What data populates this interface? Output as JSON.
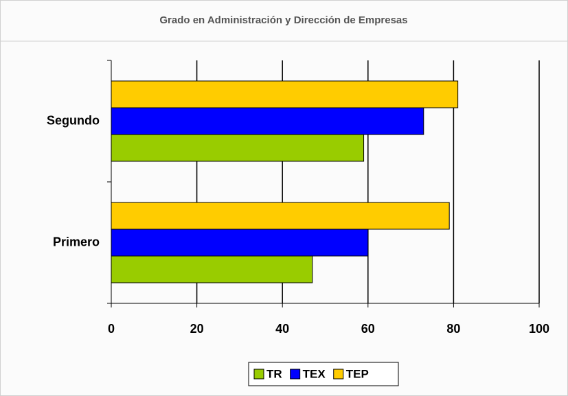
{
  "chart_data": {
    "type": "hbar",
    "title": "Grado en Administración y Dirección de Empresas",
    "categories": [
      "Primero",
      "Segundo"
    ],
    "series": [
      {
        "name": "TR",
        "color": "#99cc00",
        "values": [
          47,
          59
        ]
      },
      {
        "name": "TEX",
        "color": "#0000ff",
        "values": [
          60,
          73
        ]
      },
      {
        "name": "TEP",
        "color": "#ffcc00",
        "values": [
          79,
          81
        ]
      }
    ],
    "xlim": [
      0,
      100
    ],
    "xticks": [
      0,
      20,
      40,
      60,
      80,
      100
    ],
    "grid": true
  }
}
